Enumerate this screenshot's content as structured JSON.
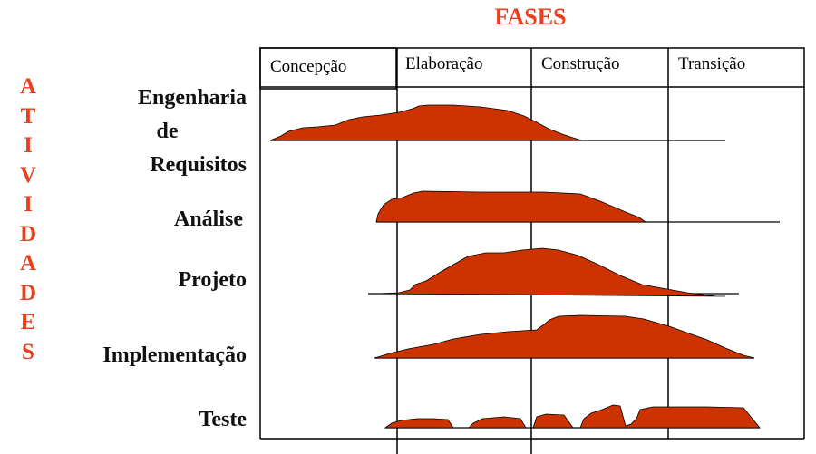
{
  "title": "FASES",
  "vertical_label": [
    "A",
    "T",
    "I",
    "V",
    "I",
    "D",
    "A",
    "D",
    "E",
    "S"
  ],
  "phases": [
    "Concepção",
    "Elaboração",
    "Construção",
    "Transição"
  ],
  "activities": [
    {
      "label_lines": [
        "Engenharia",
        "de",
        "Requisitos"
      ]
    },
    {
      "label_lines": [
        "Análise"
      ]
    },
    {
      "label_lines": [
        "Projeto"
      ]
    },
    {
      "label_lines": [
        "Implementação"
      ]
    },
    {
      "label_lines": [
        "Teste"
      ]
    }
  ],
  "colors": {
    "fill": "#cc3300",
    "accent": "#e8401f",
    "line": "#000000"
  }
}
